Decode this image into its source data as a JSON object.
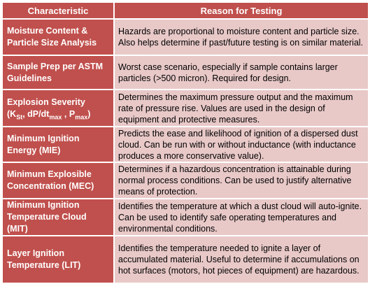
{
  "table": {
    "headers": [
      "Characteristic",
      "Reason for Testing"
    ],
    "rows": [
      {
        "characteristic": "Moisture Content & Particle Size Analysis",
        "reason": "Hazards are proportional to moisture content and particle size. Also helps determine if past/future testing is on similar material."
      },
      {
        "characteristic": "Sample Prep per ASTM Guidelines",
        "reason": "Worst case scenario, especially if sample contains larger particles (>500 micron). Required for design."
      },
      {
        "characteristic_parts": {
          "line1": "Explosion Severity",
          "open": "(K",
          "sub1": "St",
          "mid1": ", dP/dt",
          "sub2": "max",
          "mid2": " , P",
          "sub3": "max",
          "close": ")"
        },
        "reason": "Determines the maximum pressure output and the maximum rate of pressure rise. Values are used in the design of equipment and protective measures."
      },
      {
        "characteristic": "Minimum Ignition Energy (MIE)",
        "reason": "Predicts the ease and likelihood of ignition of a dispersed dust cloud. Can be run with or without inductance (with inductance produces a more conservative value)."
      },
      {
        "characteristic": "Minimum Explosible Concentration (MEC)",
        "reason": "Determines if a hazardous concentration is attainable during normal process conditions. Can be used to justify alternative means of protection."
      },
      {
        "characteristic": "Minimum Ignition Temperature Cloud (MIT)",
        "reason": "Identifies the temperature at which a dust cloud will auto-ignite. Can be used to identify safe operating temperatures and environmental conditions."
      },
      {
        "characteristic": "Layer Ignition Temperature (LIT)",
        "reason": "Identifies the temperature needed to ignite a layer of accumulated material. Useful to determine if accumulations on hot surfaces (motors, hot pieces of equipment) are hazardous."
      }
    ]
  }
}
